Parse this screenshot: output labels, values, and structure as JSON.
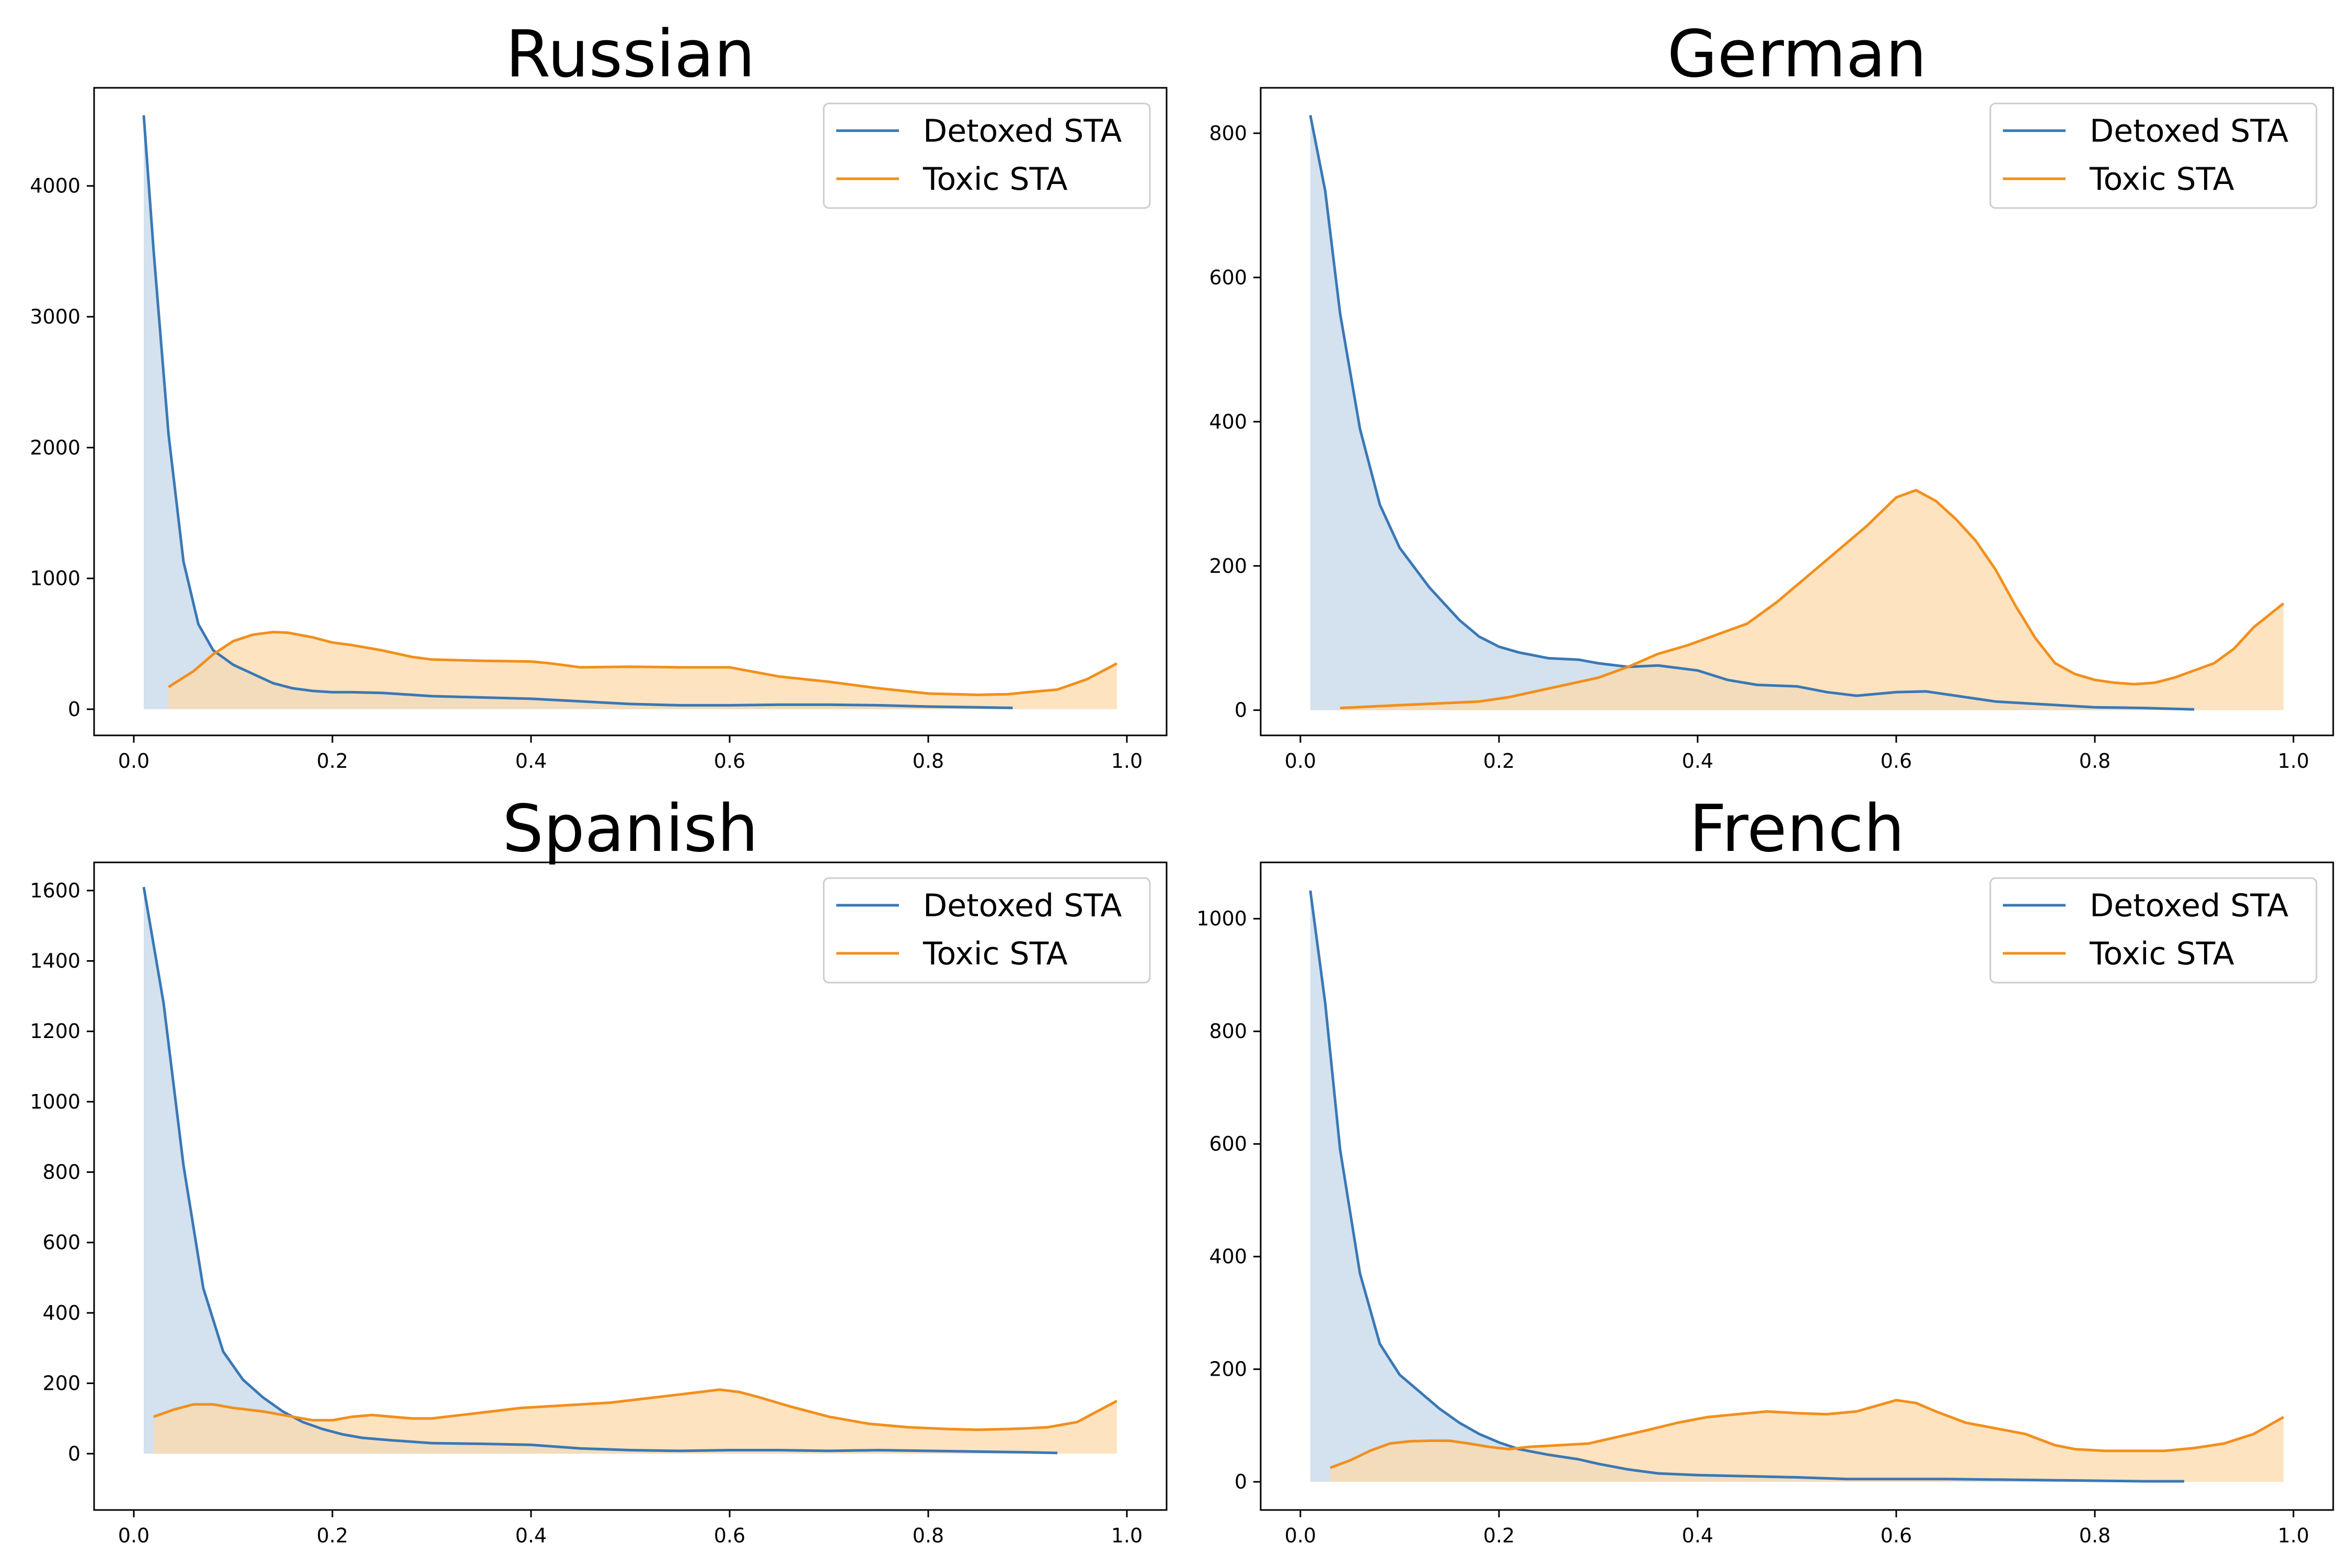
{
  "chart_data": [
    {
      "type": "area",
      "title": "Russian",
      "xlabel": "",
      "ylabel": "",
      "xlim": [
        -0.04,
        1.04
      ],
      "ylim": [
        -200,
        4750
      ],
      "xticks": [
        0.0,
        0.2,
        0.4,
        0.6,
        0.8,
        1.0
      ],
      "xtick_labels": [
        "0.0",
        "0.2",
        "0.4",
        "0.6",
        "0.8",
        "1.0"
      ],
      "yticks": [
        0,
        1000,
        2000,
        3000,
        4000
      ],
      "ytick_labels": [
        "0",
        "1000",
        "2000",
        "3000",
        "4000"
      ],
      "grid": false,
      "legend": "top-right",
      "series": [
        {
          "name": "Detoxed STA",
          "color": "#3a78b5",
          "fill": "#c6d7e9",
          "x": [
            0.01,
            0.02,
            0.035,
            0.05,
            0.065,
            0.08,
            0.1,
            0.12,
            0.14,
            0.16,
            0.18,
            0.2,
            0.22,
            0.25,
            0.28,
            0.3,
            0.35,
            0.4,
            0.45,
            0.5,
            0.55,
            0.6,
            0.65,
            0.7,
            0.75,
            0.8,
            0.85,
            0.885
          ],
          "y": [
            4540,
            3500,
            2100,
            1130,
            650,
            450,
            340,
            270,
            200,
            160,
            140,
            130,
            130,
            125,
            110,
            100,
            90,
            80,
            60,
            40,
            30,
            30,
            35,
            35,
            30,
            20,
            15,
            10
          ]
        },
        {
          "name": "Toxic STA",
          "color": "#f28f1c",
          "fill": "#fdd9ab",
          "x": [
            0.035,
            0.06,
            0.08,
            0.1,
            0.12,
            0.14,
            0.155,
            0.18,
            0.2,
            0.22,
            0.25,
            0.28,
            0.3,
            0.35,
            0.4,
            0.42,
            0.45,
            0.5,
            0.55,
            0.6,
            0.65,
            0.7,
            0.75,
            0.8,
            0.85,
            0.88,
            0.9,
            0.93,
            0.96,
            0.99
          ],
          "y": [
            170,
            290,
            420,
            520,
            570,
            590,
            585,
            550,
            510,
            490,
            450,
            400,
            380,
            370,
            365,
            350,
            320,
            325,
            320,
            320,
            250,
            210,
            160,
            120,
            110,
            115,
            130,
            150,
            230,
            350
          ]
        }
      ]
    },
    {
      "type": "area",
      "title": "German",
      "xlabel": "",
      "ylabel": "",
      "xlim": [
        -0.04,
        1.04
      ],
      "ylim": [
        -35,
        863
      ],
      "xticks": [
        0.0,
        0.2,
        0.4,
        0.6,
        0.8,
        1.0
      ],
      "xtick_labels": [
        "0.0",
        "0.2",
        "0.4",
        "0.6",
        "0.8",
        "1.0"
      ],
      "yticks": [
        0,
        200,
        400,
        600,
        800
      ],
      "ytick_labels": [
        "0",
        "200",
        "400",
        "600",
        "800"
      ],
      "grid": false,
      "legend": "top-right",
      "series": [
        {
          "name": "Detoxed STA",
          "color": "#3a78b5",
          "fill": "#c6d7e9",
          "x": [
            0.01,
            0.025,
            0.04,
            0.06,
            0.08,
            0.1,
            0.13,
            0.16,
            0.18,
            0.2,
            0.22,
            0.25,
            0.28,
            0.3,
            0.33,
            0.36,
            0.4,
            0.43,
            0.46,
            0.5,
            0.53,
            0.56,
            0.6,
            0.63,
            0.66,
            0.7,
            0.75,
            0.8,
            0.85,
            0.9
          ],
          "y": [
            825,
            720,
            550,
            390,
            285,
            225,
            170,
            125,
            102,
            88,
            80,
            72,
            70,
            65,
            60,
            62,
            55,
            42,
            35,
            33,
            25,
            20,
            25,
            26,
            20,
            12,
            8,
            4,
            3,
            1
          ]
        },
        {
          "name": "Toxic STA",
          "color": "#f28f1c",
          "fill": "#fdd9ab",
          "x": [
            0.04,
            0.1,
            0.15,
            0.18,
            0.21,
            0.25,
            0.3,
            0.33,
            0.36,
            0.39,
            0.42,
            0.45,
            0.48,
            0.51,
            0.54,
            0.57,
            0.6,
            0.62,
            0.64,
            0.66,
            0.68,
            0.7,
            0.72,
            0.74,
            0.76,
            0.78,
            0.8,
            0.82,
            0.84,
            0.86,
            0.88,
            0.9,
            0.92,
            0.94,
            0.96,
            0.99
          ],
          "y": [
            3,
            7,
            10,
            12,
            18,
            30,
            45,
            60,
            78,
            90,
            105,
            120,
            150,
            185,
            220,
            255,
            295,
            305,
            290,
            265,
            235,
            195,
            145,
            100,
            65,
            50,
            42,
            38,
            36,
            38,
            45,
            55,
            65,
            85,
            115,
            148
          ]
        }
      ]
    },
    {
      "type": "area",
      "title": "Spanish",
      "xlabel": "",
      "ylabel": "",
      "xlim": [
        -0.04,
        1.04
      ],
      "ylim": [
        -160,
        1680
      ],
      "xticks": [
        0.0,
        0.2,
        0.4,
        0.6,
        0.8,
        1.0
      ],
      "xtick_labels": [
        "0.0",
        "0.2",
        "0.4",
        "0.6",
        "0.8",
        "1.0"
      ],
      "yticks": [
        0,
        200,
        400,
        600,
        800,
        1000,
        1200,
        1400,
        1600
      ],
      "ytick_labels": [
        "0",
        "200",
        "400",
        "600",
        "800",
        "1000",
        "1200",
        "1400",
        "1600"
      ],
      "grid": false,
      "legend": "top-right",
      "series": [
        {
          "name": "Detoxed STA",
          "color": "#3a78b5",
          "fill": "#c6d7e9",
          "x": [
            0.01,
            0.03,
            0.05,
            0.07,
            0.09,
            0.11,
            0.13,
            0.15,
            0.17,
            0.19,
            0.21,
            0.23,
            0.26,
            0.3,
            0.35,
            0.4,
            0.45,
            0.5,
            0.55,
            0.6,
            0.65,
            0.7,
            0.75,
            0.8,
            0.85,
            0.9,
            0.93
          ],
          "y": [
            1610,
            1280,
            820,
            470,
            290,
            210,
            160,
            120,
            90,
            70,
            55,
            45,
            38,
            30,
            28,
            25,
            15,
            10,
            8,
            10,
            10,
            8,
            10,
            8,
            6,
            4,
            2
          ]
        },
        {
          "name": "Toxic STA",
          "color": "#f28f1c",
          "fill": "#fdd9ab",
          "x": [
            0.02,
            0.04,
            0.06,
            0.08,
            0.1,
            0.13,
            0.16,
            0.18,
            0.2,
            0.22,
            0.24,
            0.26,
            0.28,
            0.3,
            0.33,
            0.36,
            0.39,
            0.42,
            0.45,
            0.48,
            0.51,
            0.54,
            0.57,
            0.59,
            0.61,
            0.63,
            0.66,
            0.7,
            0.74,
            0.78,
            0.82,
            0.85,
            0.88,
            0.9,
            0.92,
            0.95,
            0.97,
            0.99
          ],
          "y": [
            105,
            125,
            140,
            140,
            130,
            120,
            105,
            95,
            95,
            105,
            110,
            105,
            100,
            100,
            110,
            120,
            130,
            135,
            140,
            145,
            155,
            165,
            175,
            182,
            175,
            160,
            135,
            105,
            85,
            75,
            70,
            68,
            70,
            72,
            75,
            90,
            120,
            150
          ]
        }
      ]
    },
    {
      "type": "area",
      "title": "French",
      "xlabel": "",
      "ylabel": "",
      "xlim": [
        -0.04,
        1.04
      ],
      "ylim": [
        -50,
        1100
      ],
      "xticks": [
        0.0,
        0.2,
        0.4,
        0.6,
        0.8,
        1.0
      ],
      "xtick_labels": [
        "0.0",
        "0.2",
        "0.4",
        "0.6",
        "0.8",
        "1.0"
      ],
      "yticks": [
        0,
        200,
        400,
        600,
        800,
        1000
      ],
      "ytick_labels": [
        "0",
        "200",
        "400",
        "600",
        "800",
        "1000"
      ],
      "grid": false,
      "legend": "top-right",
      "series": [
        {
          "name": "Detoxed STA",
          "color": "#3a78b5",
          "fill": "#c6d7e9",
          "x": [
            0.01,
            0.025,
            0.04,
            0.06,
            0.08,
            0.1,
            0.12,
            0.14,
            0.16,
            0.18,
            0.2,
            0.22,
            0.25,
            0.28,
            0.3,
            0.33,
            0.36,
            0.4,
            0.45,
            0.5,
            0.55,
            0.6,
            0.65,
            0.7,
            0.75,
            0.8,
            0.85,
            0.89
          ],
          "y": [
            1050,
            850,
            590,
            370,
            245,
            190,
            160,
            130,
            105,
            85,
            70,
            58,
            48,
            40,
            32,
            22,
            15,
            12,
            10,
            8,
            5,
            5,
            5,
            4,
            3,
            2,
            1,
            1
          ]
        },
        {
          "name": "Toxic STA",
          "color": "#f28f1c",
          "fill": "#fdd9ab",
          "x": [
            0.03,
            0.05,
            0.07,
            0.09,
            0.11,
            0.13,
            0.15,
            0.17,
            0.19,
            0.21,
            0.23,
            0.26,
            0.29,
            0.32,
            0.35,
            0.38,
            0.41,
            0.44,
            0.47,
            0.5,
            0.53,
            0.56,
            0.58,
            0.6,
            0.62,
            0.64,
            0.67,
            0.7,
            0.73,
            0.76,
            0.78,
            0.81,
            0.84,
            0.87,
            0.9,
            0.93,
            0.96,
            0.99
          ],
          "y": [
            25,
            38,
            55,
            68,
            72,
            73,
            73,
            68,
            62,
            58,
            62,
            65,
            68,
            80,
            92,
            105,
            115,
            120,
            125,
            122,
            120,
            125,
            135,
            145,
            140,
            125,
            105,
            95,
            85,
            65,
            58,
            55,
            55,
            55,
            60,
            68,
            85,
            115
          ]
        }
      ]
    }
  ]
}
